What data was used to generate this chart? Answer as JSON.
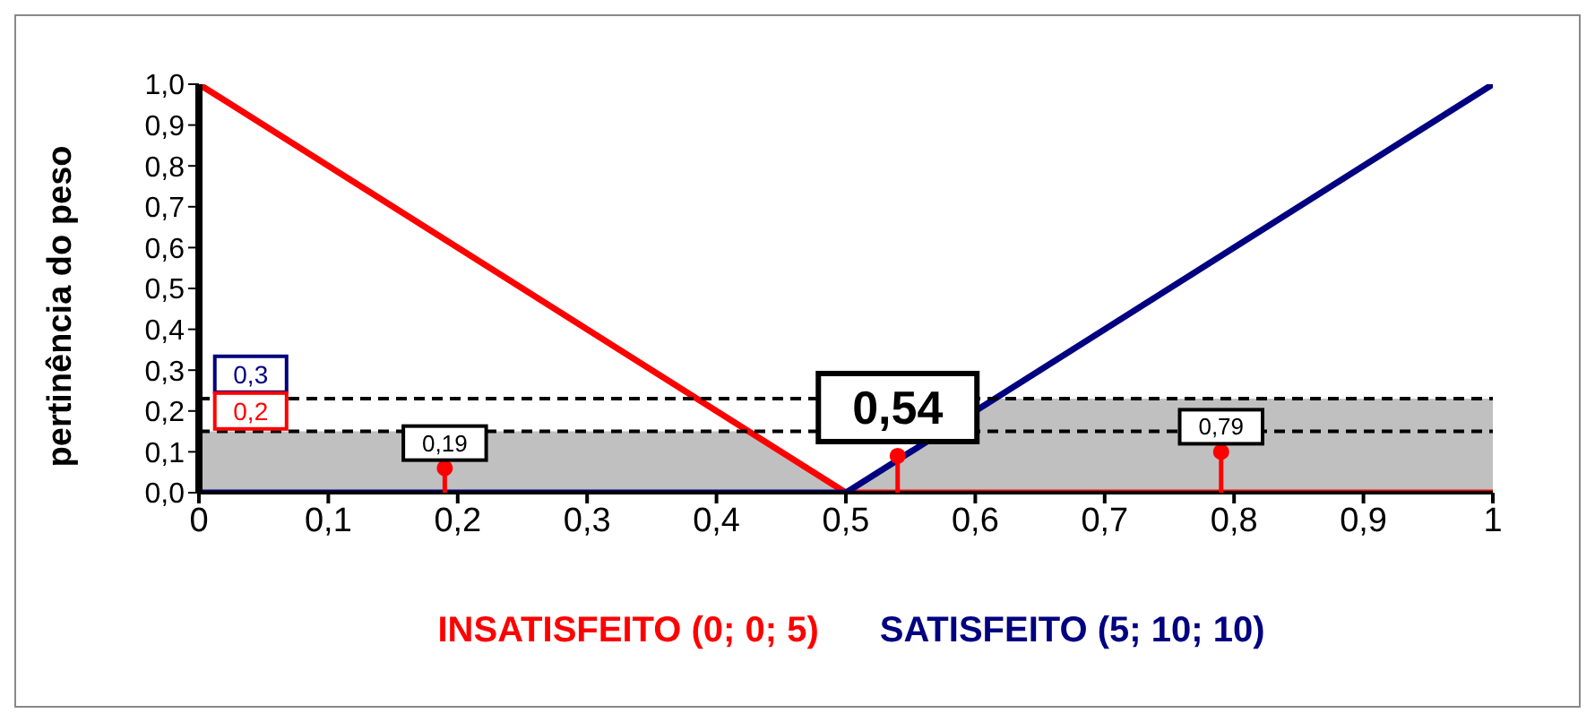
{
  "chart_data": {
    "type": "line",
    "ylabel": "pertinência do peso",
    "series": [
      {
        "name": "INSATISFEITO (0; 0; 5)",
        "color": "#ff0000",
        "x": [
          0,
          0.5,
          1
        ],
        "values": [
          1,
          0,
          0
        ]
      },
      {
        "name": "SATISFEITO (5; 10; 10)",
        "color": "#000080",
        "x": [
          0,
          0.5,
          1
        ],
        "values": [
          0,
          0,
          1
        ]
      },
      {
        "type": "area",
        "color": "#c0c0c0",
        "x": [
          0,
          0.425,
          0.5,
          0.615,
          1
        ],
        "values": [
          0.15,
          0.15,
          0,
          0.23,
          0.23
        ]
      },
      {
        "type": "lollipop",
        "color": "#ff0000",
        "x": [
          0.19,
          0.54,
          0.79
        ],
        "values": [
          0.06,
          0.09,
          0.1
        ]
      }
    ],
    "xlim": [
      0,
      1
    ],
    "xticks": [
      0,
      {
        "value": 0.1,
        "label": "0,1"
      },
      {
        "value": 0.2,
        "label": "0,2"
      },
      {
        "value": 0.3,
        "label": "0,3"
      },
      {
        "value": 0.4,
        "label": "0,4"
      },
      {
        "value": 0.5,
        "label": "0,5"
      },
      {
        "value": 0.6,
        "label": "0,6"
      },
      {
        "value": 0.7,
        "label": "0,7"
      },
      {
        "value": 0.8,
        "label": "0,8"
      },
      {
        "value": 0.9,
        "label": "0,9"
      },
      1
    ],
    "ylim": [
      0,
      1
    ],
    "yticks": [
      {
        "value": 0,
        "label": "0,0"
      },
      {
        "value": 0.1,
        "label": "0,1"
      },
      {
        "value": 0.2,
        "label": "0,2"
      },
      {
        "value": 0.3,
        "label": "0,3"
      },
      {
        "value": 0.4,
        "label": "0,4"
      },
      {
        "value": 0.5,
        "label": "0,5"
      },
      {
        "value": 0.6,
        "label": "0,6"
      },
      {
        "value": 0.7,
        "label": "0,7"
      },
      {
        "value": 0.8,
        "label": "0,8"
      },
      {
        "value": 0.9,
        "label": "0,9"
      },
      {
        "value": 1,
        "label": "1,0"
      }
    ],
    "ref_lines": [
      {
        "axis": "y",
        "value": 0.23,
        "color": "#000000",
        "line_style": "dashed"
      },
      {
        "axis": "y",
        "value": 0.15,
        "color": "#000000",
        "line_style": "dashed"
      }
    ],
    "annotations": [
      {
        "text": "0,3",
        "x": 0.04,
        "y": 0.29
      },
      {
        "text": "0,2",
        "x": 0.04,
        "y": 0.2
      },
      {
        "text": "0,19",
        "x": 0.19,
        "y": 0.06
      },
      {
        "text": "0,54",
        "x": 0.54,
        "y": 0.09
      },
      {
        "text": "0,79",
        "x": 0.79,
        "y": 0.1
      }
    ],
    "legend": "bottom"
  }
}
